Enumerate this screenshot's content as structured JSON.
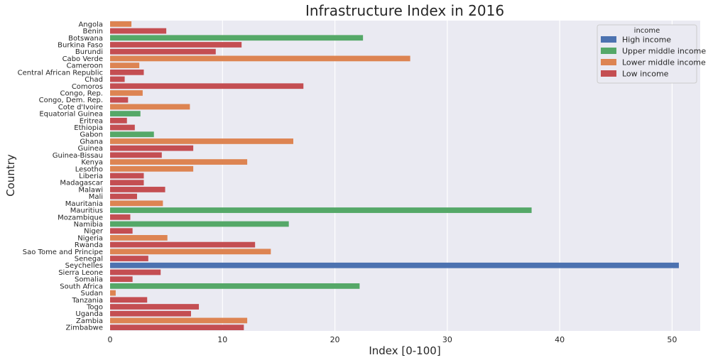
{
  "chart_data": {
    "type": "bar",
    "orientation": "horizontal",
    "title": "Infrastructure Index in 2016",
    "xlabel": "Index [0-100]",
    "ylabel": "Country",
    "xlim": [
      0,
      52.5
    ],
    "xticks": [
      0,
      10,
      20,
      30,
      40,
      50
    ],
    "grid": true,
    "legend_title": "income",
    "legend_position": "top-right",
    "groups": [
      {
        "name": "High income",
        "color": "#4c72b0"
      },
      {
        "name": "Upper middle income",
        "color": "#55a868"
      },
      {
        "name": "Lower middle income",
        "color": "#dd8452"
      },
      {
        "name": "Low income",
        "color": "#c44e52"
      }
    ],
    "categories": [
      "Angola",
      "Benin",
      "Botswana",
      "Burkina Faso",
      "Burundi",
      "Cabo Verde",
      "Cameroon",
      "Central African Republic",
      "Chad",
      "Comoros",
      "Congo, Rep.",
      "Congo, Dem. Rep.",
      "Cote d'Ivoire",
      "Equatorial Guinea",
      "Eritrea",
      "Ethiopia",
      "Gabon",
      "Ghana",
      "Guinea",
      "Guinea-Bissau",
      "Kenya",
      "Lesotho",
      "Liberia",
      "Madagascar",
      "Malawi",
      "Mali",
      "Mauritania",
      "Mauritius",
      "Mozambique",
      "Namibia",
      "Niger",
      "Nigeria",
      "Rwanda",
      "Sao Tome and Principe",
      "Senegal",
      "Seychelles",
      "Sierra Leone",
      "Somalia",
      "South Africa",
      "Sudan",
      "Tanzania",
      "Togo",
      "Uganda",
      "Zambia",
      "Zimbabwe"
    ],
    "values": [
      1.9,
      5.0,
      22.5,
      11.7,
      9.4,
      26.7,
      2.6,
      3.0,
      1.3,
      17.2,
      2.9,
      1.6,
      7.1,
      2.7,
      1.5,
      2.2,
      3.9,
      16.3,
      7.4,
      4.6,
      12.2,
      7.4,
      3.0,
      3.0,
      4.9,
      2.4,
      4.7,
      37.5,
      1.8,
      15.9,
      2.0,
      5.1,
      12.9,
      14.3,
      3.4,
      50.6,
      4.5,
      2.0,
      22.2,
      0.5,
      3.3,
      7.9,
      7.2,
      12.2,
      11.9
    ],
    "income_groups": [
      "Lower middle income",
      "Low income",
      "Upper middle income",
      "Low income",
      "Low income",
      "Lower middle income",
      "Lower middle income",
      "Low income",
      "Low income",
      "Low income",
      "Lower middle income",
      "Low income",
      "Lower middle income",
      "Upper middle income",
      "Low income",
      "Low income",
      "Upper middle income",
      "Lower middle income",
      "Low income",
      "Low income",
      "Lower middle income",
      "Lower middle income",
      "Low income",
      "Low income",
      "Low income",
      "Low income",
      "Lower middle income",
      "Upper middle income",
      "Low income",
      "Upper middle income",
      "Low income",
      "Lower middle income",
      "Low income",
      "Lower middle income",
      "Low income",
      "High income",
      "Low income",
      "Low income",
      "Upper middle income",
      "Lower middle income",
      "Low income",
      "Low income",
      "Low income",
      "Lower middle income",
      "Low income"
    ]
  }
}
